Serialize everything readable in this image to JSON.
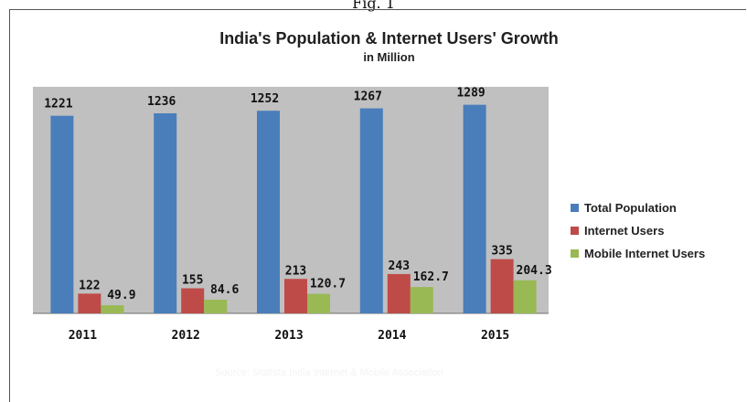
{
  "caption": "Fig. 1",
  "source_note": "Source: Statista India Internet & Mobile Association",
  "chart_data": {
    "type": "bar",
    "title": "India's Population & Internet Users' Growth",
    "subtitle": "in Million",
    "categories": [
      "2011",
      "2012",
      "2013",
      "2014",
      "2015"
    ],
    "series": [
      {
        "name": "Total Population",
        "color": "#4a7ebb",
        "values": [
          1221,
          1236,
          1252,
          1267,
          1289
        ]
      },
      {
        "name": "Internet Users",
        "color": "#be4b48",
        "values": [
          122,
          155,
          213,
          243,
          335
        ]
      },
      {
        "name": "Mobile Internet Users",
        "color": "#98b954",
        "values": [
          49.9,
          84.6,
          120.7,
          162.7,
          204.3
        ]
      }
    ],
    "value_labels": [
      [
        "1221",
        "1236",
        "1252",
        "1267",
        "1289"
      ],
      [
        "122",
        "155",
        "213",
        "243",
        "335"
      ],
      [
        "49.9",
        "84.6",
        "120.7",
        "162.7",
        "204.3"
      ]
    ],
    "ylim": [
      0,
      1400
    ],
    "grid": false,
    "plot_background": "#c0c0c0",
    "legend_position": "right"
  }
}
